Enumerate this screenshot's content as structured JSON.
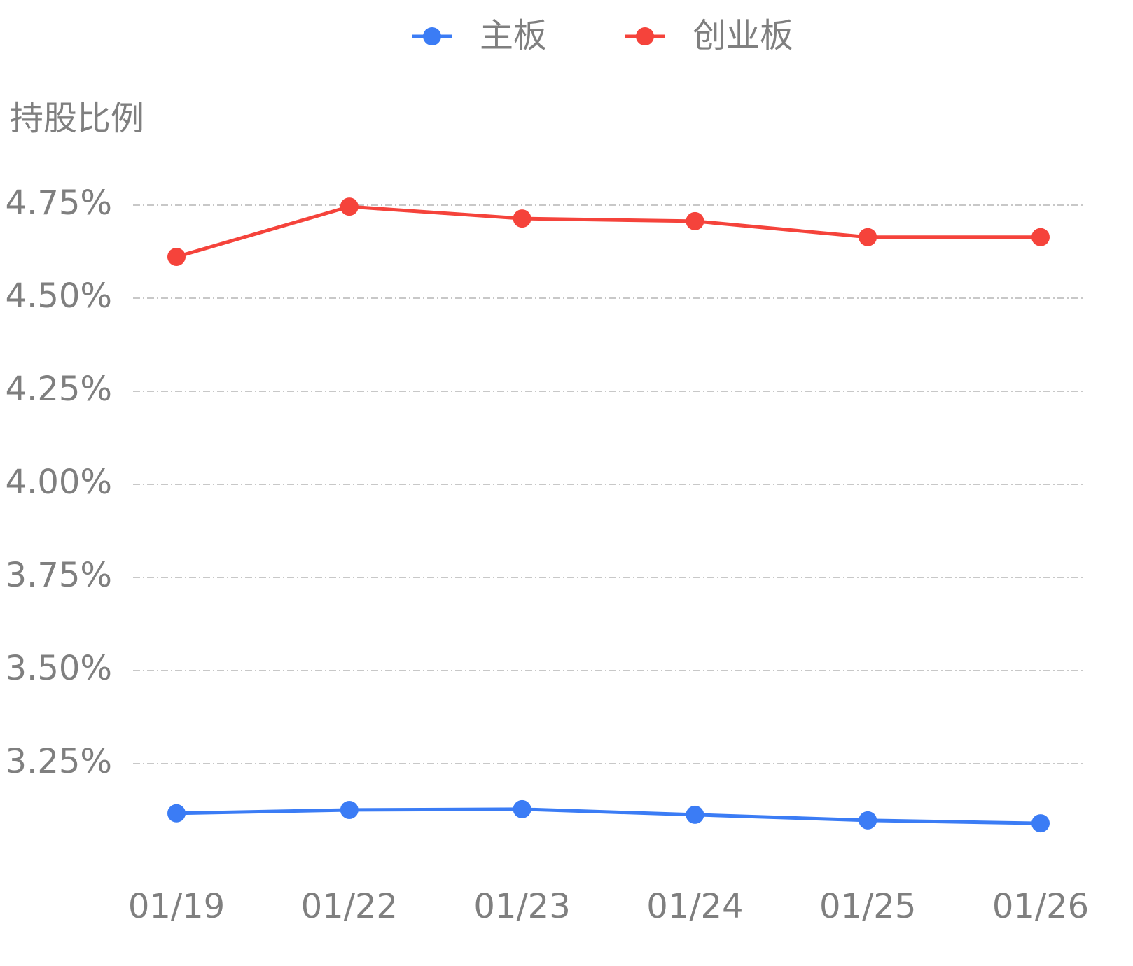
{
  "chart_data": {
    "type": "line",
    "y_label": "持股比例",
    "categories": [
      "01/19",
      "01/22",
      "01/23",
      "01/24",
      "01/25",
      "01/26"
    ],
    "series": [
      {
        "name": "主板",
        "color": "#3b7cf5",
        "values": [
          3.117,
          3.126,
          3.128,
          3.113,
          3.098,
          3.09
        ]
      },
      {
        "name": "创业板",
        "color": "#f5433b",
        "values": [
          4.611,
          4.746,
          4.714,
          4.707,
          4.664,
          4.664
        ]
      }
    ],
    "ylim": [
      3.0,
      5.0
    ],
    "yticks": [
      {
        "value": 3.25,
        "label": "3.25%"
      },
      {
        "value": 3.5,
        "label": "3.50%"
      },
      {
        "value": 3.75,
        "label": "3.75%"
      },
      {
        "value": 4.0,
        "label": "4.00%"
      },
      {
        "value": 4.25,
        "label": "4.25%"
      },
      {
        "value": 4.5,
        "label": "4.50%"
      },
      {
        "value": 4.75,
        "label": "4.75%"
      }
    ],
    "grid": true,
    "legend": "top"
  }
}
